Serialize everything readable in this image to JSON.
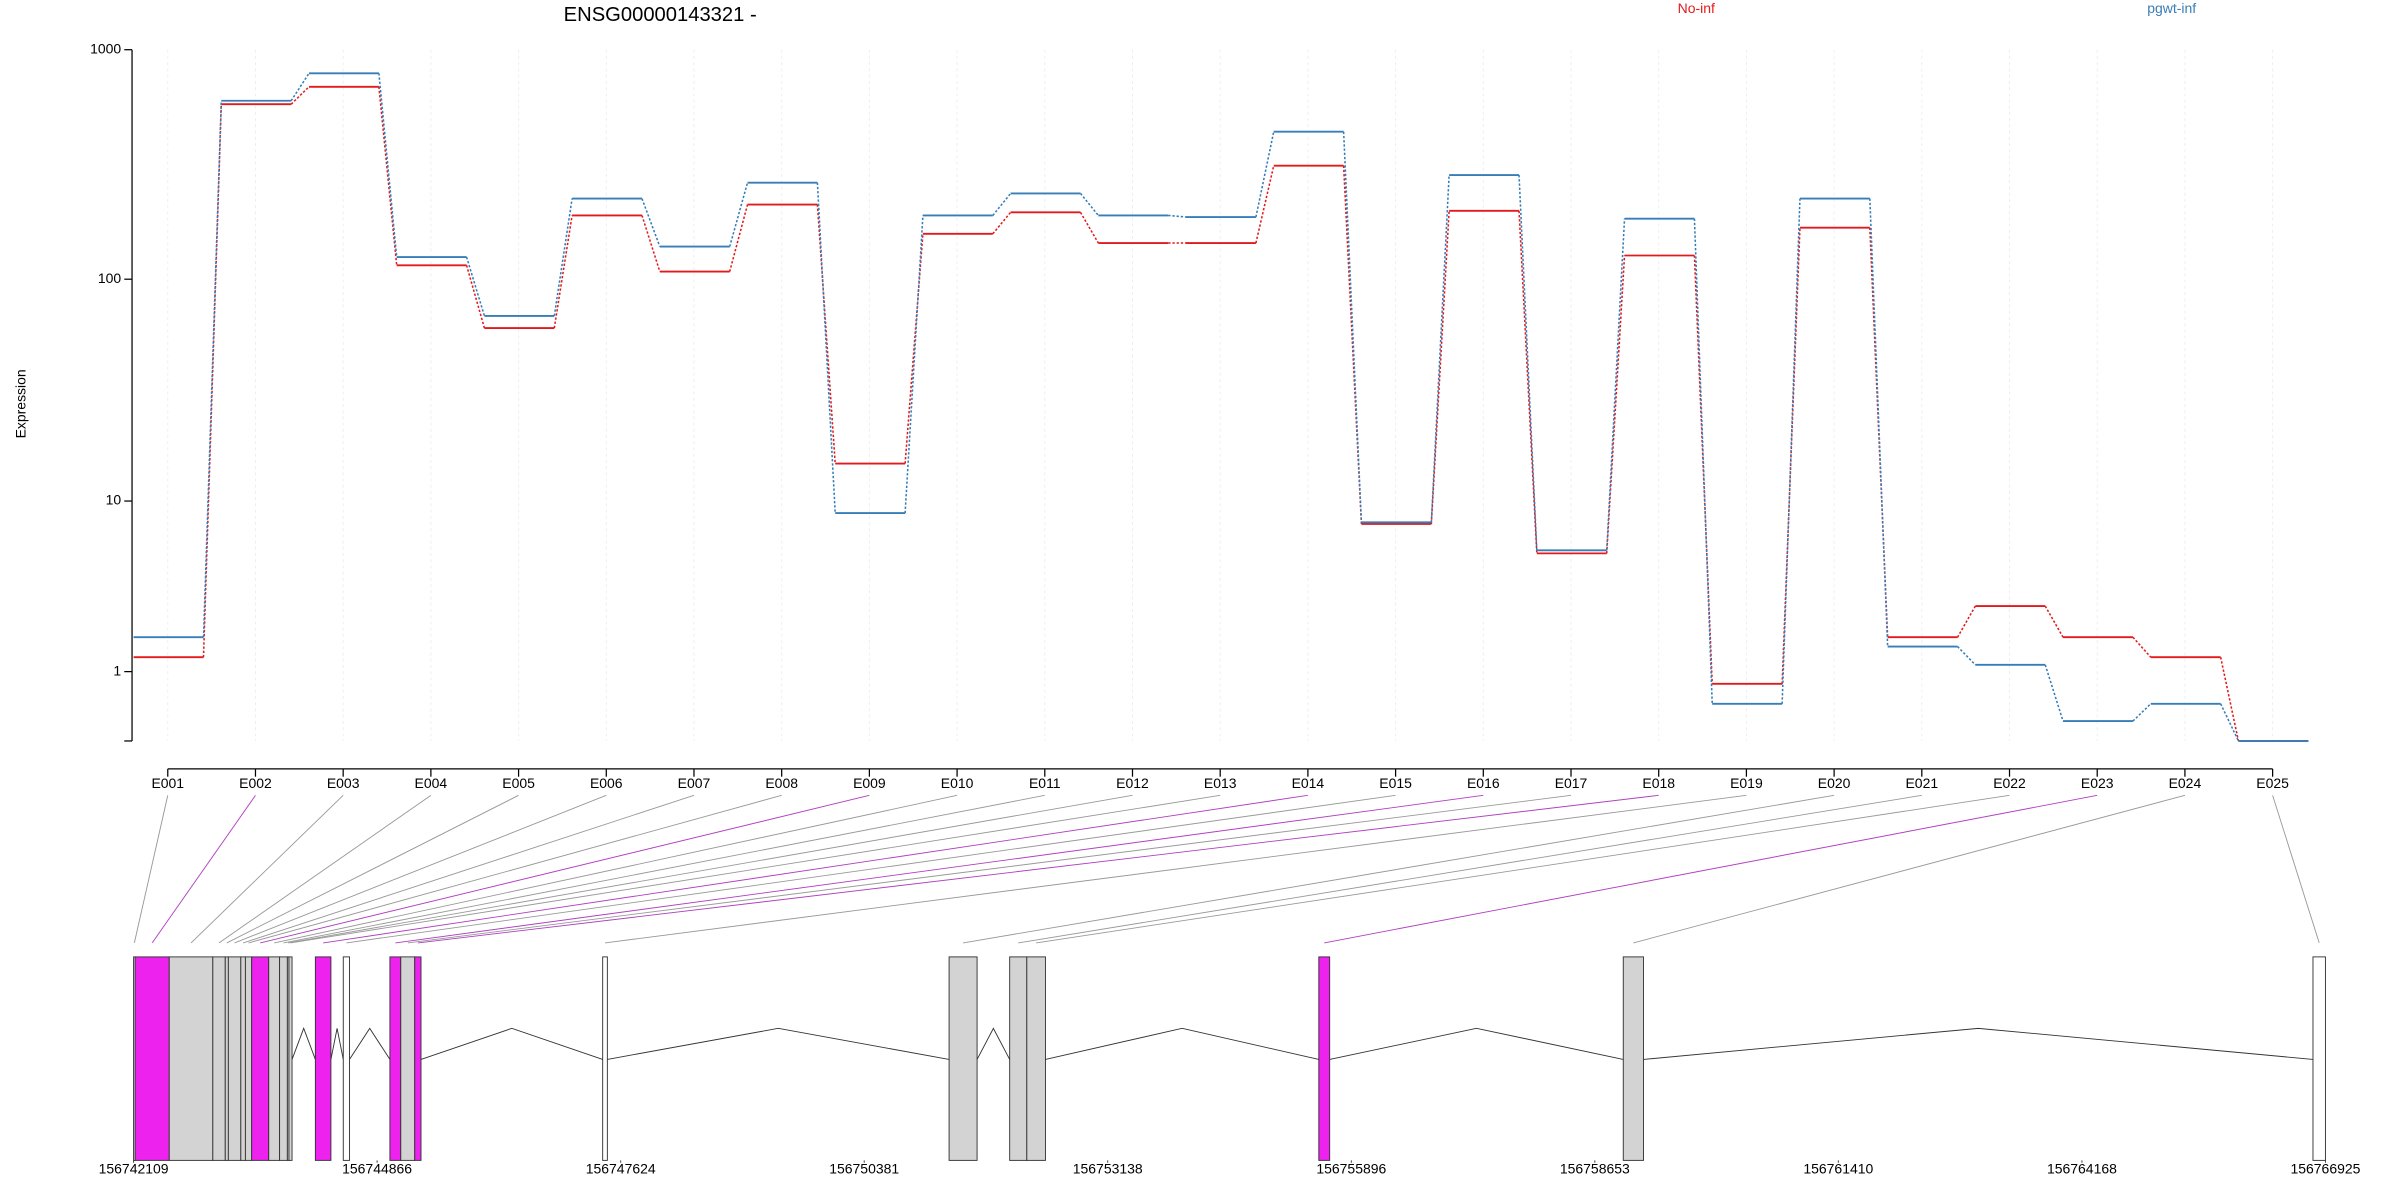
{
  "chart_data": [
    {
      "type": "line",
      "title": "ENSG00000143321 -",
      "y_label": "Expression",
      "yscale": "log1p",
      "ylim": [
        0,
        1000
      ],
      "yticks": [
        1,
        10,
        100,
        1000
      ],
      "grid": true,
      "legend": "top",
      "categories": [
        "E001",
        "E002",
        "E003",
        "E004",
        "E005",
        "E006",
        "E007",
        "E008",
        "E009",
        "E010",
        "E011",
        "E012",
        "E013",
        "E014",
        "E015",
        "E016",
        "E017",
        "E018",
        "E019",
        "E020",
        "E021",
        "E022",
        "E023",
        "E024",
        "E025"
      ],
      "series": [
        {
          "name": "No-inf",
          "color": "#e31a1c",
          "values": [
            1.31,
            580,
            690,
            115,
            61,
            190,
            108,
            212,
            15,
            158,
            196,
            144,
            144,
            313,
            7.75,
            199,
            5.52,
            127,
            0.77,
            168,
            1.82,
            2.85,
            1.82,
            1.31,
            0
          ]
        },
        {
          "name": "pgwt-inf",
          "color": "#377eb8",
          "values": [
            1.82,
            600,
            790,
            125,
            69,
            225,
            139,
            264,
            8.75,
            190,
            237,
            190,
            187,
            440,
            7.89,
            285,
            5.72,
            184,
            0.45,
            225,
            1.57,
            1.14,
            0.22,
            0.45,
            0
          ]
        }
      ]
    },
    {
      "type": "track",
      "xlim": [
        156742109,
        156766925
      ],
      "xticks": [
        156742109,
        156744866,
        156747624,
        156750381,
        156753138,
        156755896,
        156758653,
        156761410,
        156764168,
        156766925
      ],
      "starts": [
        156742109,
        156742126,
        156742513,
        156743006,
        156743147,
        156743182,
        156743323,
        156743375,
        156743446,
        156743639,
        156743762,
        156743850,
        156743868,
        156744167,
        156744483,
        156745011,
        156745134,
        156745292,
        156747420,
        156751342,
        156752028,
        156752222,
        156755528,
        156758975,
        156766784
      ],
      "ends": [
        156742126,
        156742513,
        156743006,
        156743147,
        156743182,
        156743323,
        156743375,
        156743446,
        156743639,
        156743762,
        156743850,
        156743868,
        156743903,
        156744343,
        156744554,
        156745134,
        156745292,
        156745363,
        156747473,
        156751659,
        156752222,
        156752433,
        156755651,
        156759204,
        156766925
      ],
      "colors": [
        "#ffffff",
        "#ee22ee",
        "#d3d3d3",
        "#d3d3d3",
        "#d3d3d3",
        "#d3d3d3",
        "#d3d3d3",
        "#d3d3d3",
        "#ee22ee",
        "#d3d3d3",
        "#d3d3d3",
        "#d3d3d3",
        "#d3d3d3",
        "#ee22ee",
        "#ffffff",
        "#ee22ee",
        "#d3d3d3",
        "#ee22ee",
        "#ffffff",
        "#d3d3d3",
        "#d3d3d3",
        "#d3d3d3",
        "#ee22ee",
        "#d3d3d3",
        "#ffffff"
      ]
    }
  ]
}
